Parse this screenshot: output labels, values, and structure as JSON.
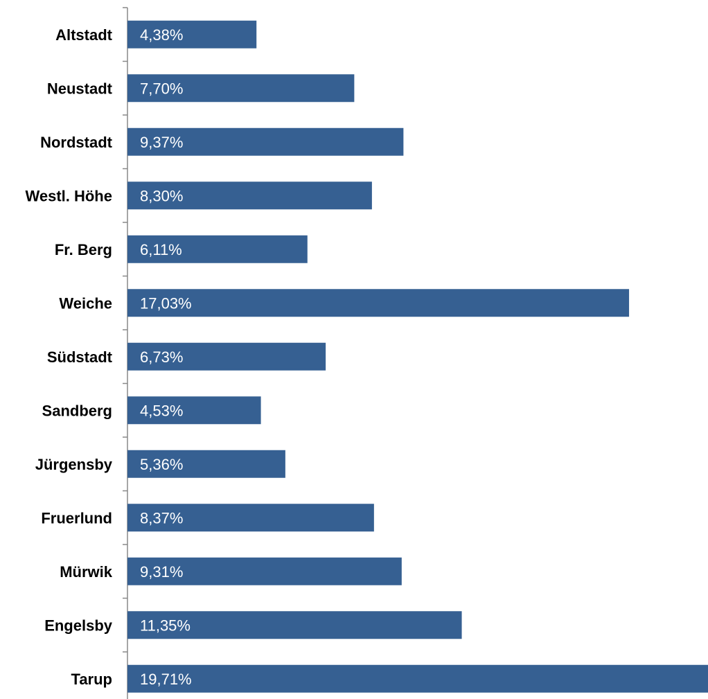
{
  "chart_data": {
    "type": "bar",
    "orientation": "horizontal",
    "categories": [
      "Altstadt",
      "Neustadt",
      "Nordstadt",
      "Westl. Höhe",
      "Fr. Berg",
      "Weiche",
      "Südstadt",
      "Sandberg",
      "Jürgensby",
      "Fruerlund",
      "Mürwik",
      "Engelsby",
      "Tarup"
    ],
    "values": [
      4.38,
      7.7,
      9.37,
      8.3,
      6.11,
      17.03,
      6.73,
      4.53,
      5.36,
      8.37,
      9.31,
      11.35,
      19.71
    ],
    "data_labels": [
      "4,38%",
      "7,70%",
      "9,37%",
      "8,30%",
      "6,11%",
      "17,03%",
      "6,73%",
      "4,53%",
      "5,36%",
      "8,37%",
      "9,31%",
      "11,35%",
      "19,71%"
    ],
    "xlim": [
      0,
      19.71
    ],
    "grid": false,
    "legend": "none",
    "bar_color": "#366092",
    "axis_color": "#888888"
  }
}
